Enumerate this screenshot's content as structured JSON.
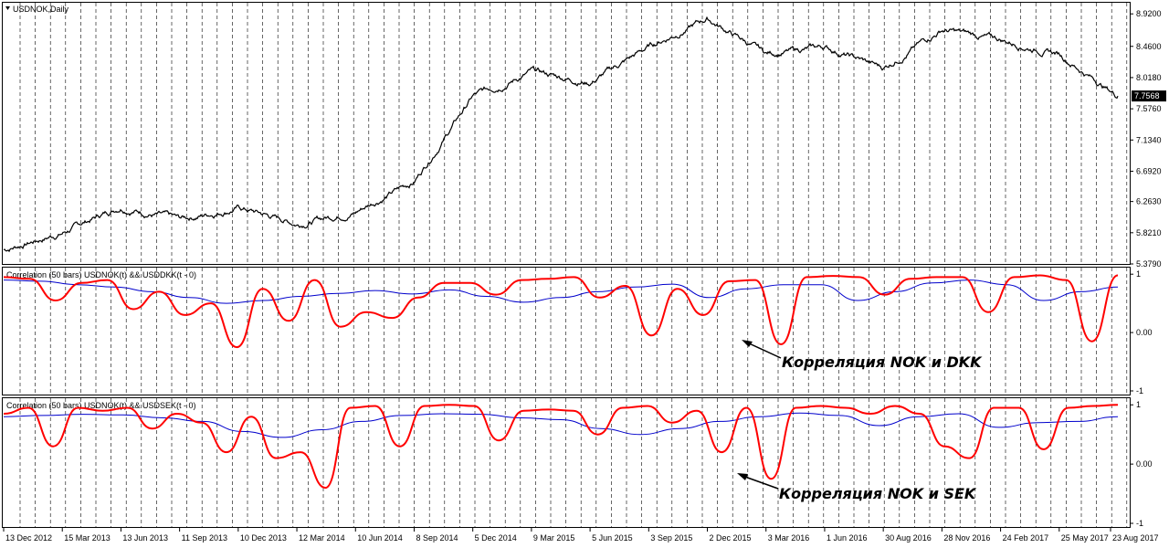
{
  "chart_data": [
    {
      "type": "line",
      "title": "USDNOK,Daily",
      "series": [
        {
          "name": "USDNOK",
          "color": "#000000",
          "x": [
            "13 Dec 2012",
            "15 Mar 2013",
            "13 Jun 2013",
            "11 Sep 2013",
            "10 Dec 2013",
            "12 Mar 2014",
            "10 Jun 2014",
            "8 Sep 2014",
            "5 Dec 2014",
            "9 Mar 2015",
            "5 Jun 2015",
            "3 Sep 2015",
            "2 Dec 2015",
            "3 Mar 2016",
            "1 Jun 2016",
            "30 Aug 2016",
            "28 Nov 2016",
            "24 Feb 2017",
            "25 May 2017",
            "23 Aug 2017"
          ],
          "values": [
            5.58,
            5.82,
            6.2,
            6.0,
            6.18,
            5.95,
            6.12,
            6.55,
            7.75,
            8.1,
            7.95,
            8.45,
            8.85,
            8.35,
            8.45,
            8.15,
            8.7,
            8.55,
            8.35,
            7.7568
          ]
        }
      ],
      "current_price": "7.7568",
      "y_ticks": [
        "8.9200",
        "8.4600",
        "8.0180",
        "7.5760",
        "7.1340",
        "6.6920",
        "6.2630",
        "5.8210",
        "5.3790"
      ],
      "ylim": [
        5.379,
        9.0
      ]
    },
    {
      "type": "line",
      "title": "Correlation (50 bars) USDNOK(t) && USDDKK(t - 0)",
      "series": [
        {
          "name": "Correlation",
          "color": "#ff0000",
          "values": [
            0.95,
            0.92,
            0.55,
            0.85,
            0.9,
            0.4,
            0.7,
            0.3,
            0.5,
            -0.25,
            0.75,
            0.2,
            0.9,
            0.1,
            0.35,
            0.25,
            0.6,
            0.85,
            0.85,
            0.65,
            0.9,
            0.92,
            0.95,
            0.6,
            0.8,
            -0.05,
            0.75,
            0.3,
            0.88,
            0.9,
            -0.2,
            0.95,
            0.97,
            0.95,
            0.65,
            0.92,
            0.95,
            0.95,
            0.35,
            0.95,
            0.98,
            0.9,
            -0.15,
            0.98
          ]
        },
        {
          "name": "Average",
          "color": "#0000cc",
          "values": [
            0.9,
            0.88,
            0.82,
            0.78,
            0.7,
            0.6,
            0.5,
            0.55,
            0.62,
            0.67,
            0.72,
            0.66,
            0.73,
            0.62,
            0.52,
            0.6,
            0.7,
            0.78,
            0.83,
            0.6,
            0.75,
            0.82,
            0.82,
            0.55,
            0.7,
            0.85,
            0.9,
            0.82,
            0.55,
            0.7,
            0.78
          ]
        }
      ],
      "y_ticks": [
        "1",
        "0.00",
        "-1"
      ],
      "ylim": [
        -1,
        1.05
      ],
      "annotation": "Корреляция NOK и DKK"
    },
    {
      "type": "line",
      "title": "Correlation (50 bars) USDNOK(t) && USDSEK(t - 0)",
      "series": [
        {
          "name": "Correlation",
          "color": "#ff0000",
          "values": [
            0.85,
            0.95,
            0.3,
            0.95,
            0.9,
            0.95,
            0.6,
            0.85,
            0.7,
            0.2,
            0.8,
            0.1,
            0.2,
            -0.4,
            0.95,
            0.98,
            0.3,
            0.98,
            1.0,
            0.98,
            0.4,
            0.9,
            0.92,
            0.9,
            0.5,
            0.95,
            0.98,
            0.7,
            0.9,
            0.2,
            0.95,
            -0.25,
            0.95,
            0.98,
            0.95,
            0.85,
            0.98,
            0.85,
            0.3,
            0.1,
            0.95,
            0.95,
            0.25,
            0.95,
            0.98,
            1.0
          ]
        },
        {
          "name": "Average",
          "color": "#0000cc",
          "values": [
            0.8,
            0.82,
            0.84,
            0.83,
            0.78,
            0.72,
            0.55,
            0.45,
            0.58,
            0.72,
            0.82,
            0.85,
            0.84,
            0.78,
            0.75,
            0.6,
            0.5,
            0.6,
            0.72,
            0.8,
            0.86,
            0.82,
            0.65,
            0.8,
            0.85,
            0.62,
            0.7,
            0.72,
            0.8
          ]
        }
      ],
      "y_ticks": [
        "1",
        "0.00",
        "-1"
      ],
      "ylim": [
        -1,
        1.05
      ],
      "annotation": "Корреляция NOK и SEK"
    }
  ],
  "x_axis_labels": [
    "13 Dec 2012",
    "15 Mar 2013",
    "13 Jun 2013",
    "11 Sep 2013",
    "10 Dec 2013",
    "12 Mar 2014",
    "10 Jun 2014",
    "8 Sep 2014",
    "5 Dec 2014",
    "9 Mar 2015",
    "5 Jun 2015",
    "3 Sep 2015",
    "2 Dec 2015",
    "3 Mar 2016",
    "1 Jun 2016",
    "30 Aug 2016",
    "28 Nov 2016",
    "24 Feb 2017",
    "25 May 2017",
    "23 Aug 2017"
  ],
  "colors": {
    "price": "#000000",
    "corr": "#ff0000",
    "avg": "#0000cc",
    "grid": "#000000",
    "priceTag": "#000000"
  }
}
